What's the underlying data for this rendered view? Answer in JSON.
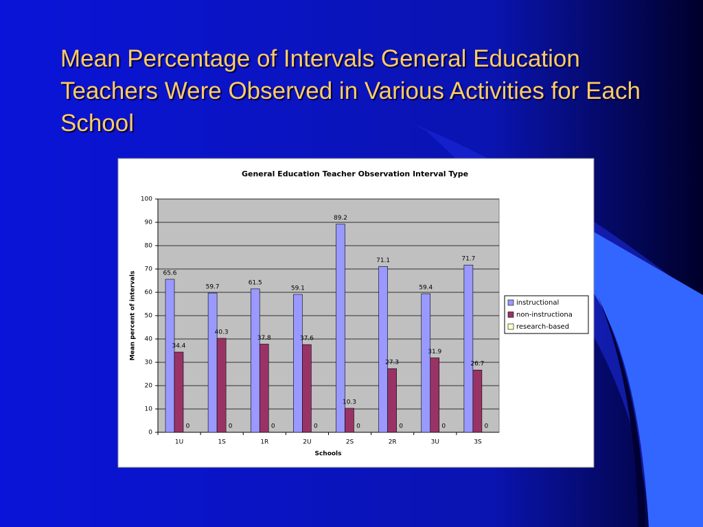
{
  "slide": {
    "title": "Mean Percentage of Intervals General Education Teachers Were Observed in Various Activities for Each School"
  },
  "chart_data": {
    "type": "bar",
    "title": "General Education Teacher Observation Interval Type",
    "x_label": "Schools",
    "y_label": "Mean percent of intervals",
    "categories": [
      "1U",
      "1S",
      "1R",
      "2U",
      "2S",
      "2R",
      "3U",
      "3S"
    ],
    "series": [
      {
        "name": "instructional",
        "color": "#9999ff",
        "values": [
          65.6,
          59.7,
          61.5,
          59.1,
          89.2,
          71.1,
          59.4,
          71.7
        ]
      },
      {
        "name": "non-instructiona",
        "color": "#993366",
        "values": [
          34.4,
          40.3,
          37.8,
          37.6,
          10.3,
          27.3,
          31.9,
          26.7
        ]
      },
      {
        "name": "research-based",
        "color": "#ffffcc",
        "values": [
          0,
          0,
          0,
          0,
          0,
          0,
          0,
          0
        ]
      }
    ],
    "ylim": [
      0,
      100
    ],
    "yticks": [
      0,
      10,
      20,
      30,
      40,
      50,
      60,
      70,
      80,
      90,
      100
    ],
    "grid": true,
    "legend": "right"
  }
}
